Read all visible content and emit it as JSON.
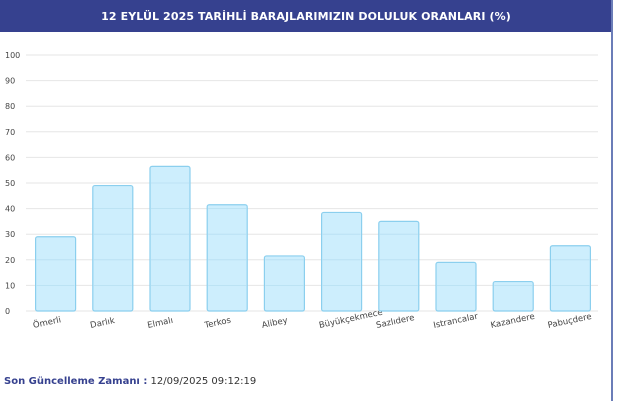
{
  "header": {
    "title": "12 EYLÜL 2025 TARİHLİ BARAJLARIMIZIN DOLULUK ORANLARI (%)"
  },
  "footer": {
    "label": "Son Güncelleme Zamanı :",
    "value": "12/09/2025 09:12:19"
  },
  "colors": {
    "header_bg": "#36418f",
    "bar_fill": "#cdeefd",
    "bar_stroke": "#8bcfee",
    "grid": "#e6e6e6"
  },
  "chart_data": {
    "type": "bar",
    "title": "12 EYLÜL 2025 TARİHLİ BARAJLARIMIZIN DOLULUK ORANLARI (%)",
    "categories": [
      "Ömerli",
      "Darlık",
      "Elmalı",
      "Terkos",
      "Alibey",
      "Büyükçekmece",
      "Sazlıdere",
      "Istrancalar",
      "Kazandere",
      "Pabuçdere"
    ],
    "values": [
      29,
      49,
      56.5,
      41.5,
      21.5,
      38.5,
      35,
      19,
      11.5,
      25.5
    ],
    "ylim": [
      0,
      100
    ],
    "yticks": [
      0,
      10,
      20,
      30,
      40,
      50,
      60,
      70,
      80,
      90,
      100
    ],
    "grid": true,
    "legend": "none"
  }
}
